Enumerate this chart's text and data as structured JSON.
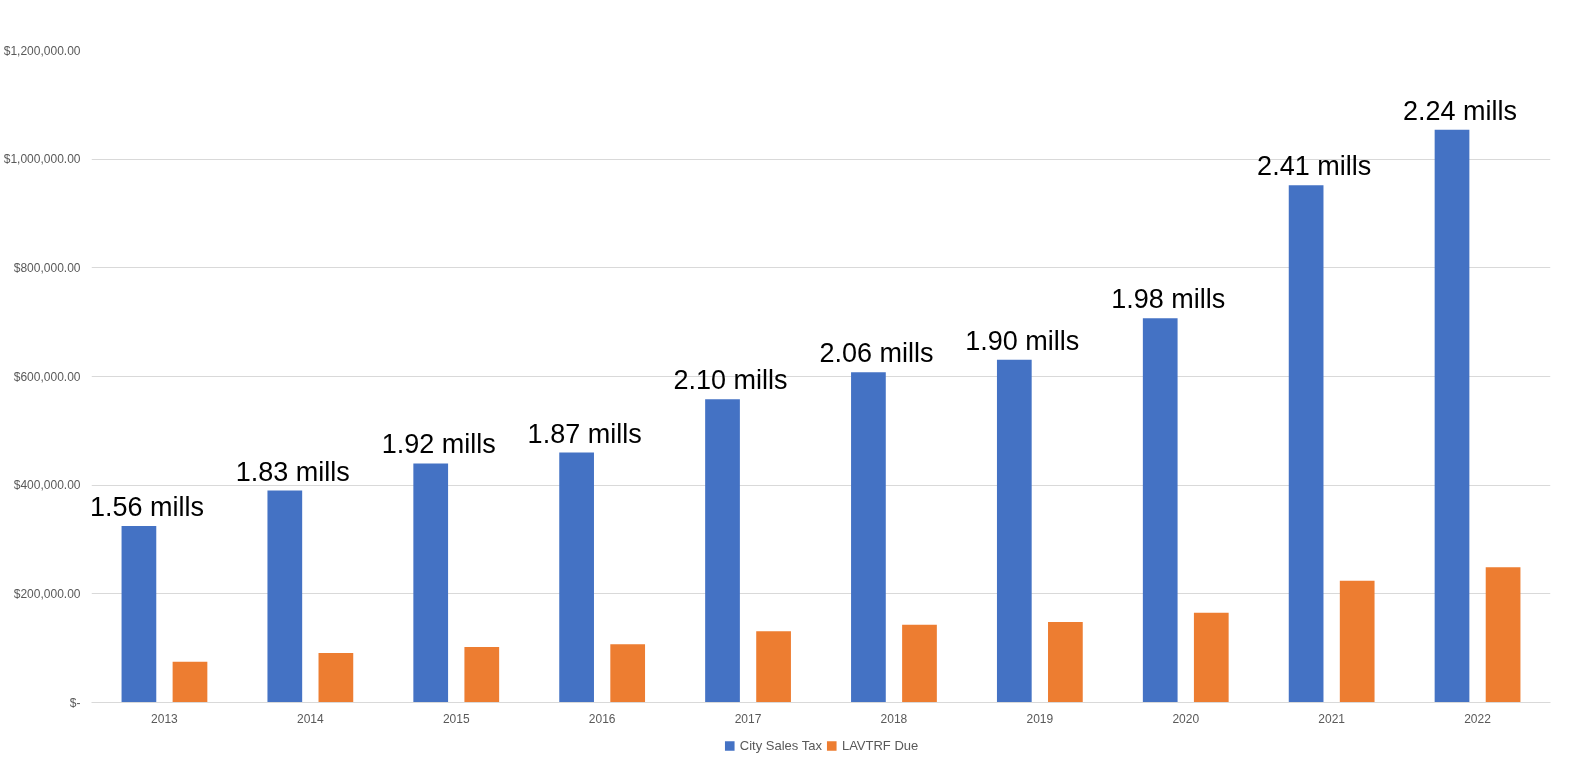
{
  "chart_data": {
    "type": "bar",
    "categories": [
      "2013",
      "2014",
      "2015",
      "2016",
      "2017",
      "2018",
      "2019",
      "2020",
      "2021",
      "2022"
    ],
    "series": [
      {
        "name": "City Sales Tax",
        "color": "#4472c4",
        "values": [
          325000,
          390000,
          440000,
          460000,
          558000,
          608000,
          631000,
          707000,
          952000,
          1054000
        ]
      },
      {
        "name": "LAVTRF Due",
        "color": "#ed7d31",
        "values": [
          75000,
          91000,
          102000,
          107000,
          131000,
          143000,
          148000,
          165000,
          224000,
          249000
        ]
      }
    ],
    "ylim": [
      0,
      1200000
    ],
    "yticks": [
      {
        "value": 0,
        "label": "$-"
      },
      {
        "value": 200000,
        "label": "$200,000.00"
      },
      {
        "value": 400000,
        "label": "$400,000.00"
      },
      {
        "value": 600000,
        "label": "$600,000.00"
      },
      {
        "value": 800000,
        "label": "$800,000.00"
      },
      {
        "value": 1000000,
        "label": "$1,000,000.00"
      },
      {
        "value": 1200000,
        "label": "$1,200,000.00"
      }
    ],
    "annotations": [
      "1.56 mills",
      "1.83 mills",
      "1.92 mills",
      "1.87 mills",
      "2.10 mills",
      "2.06 mills",
      "1.90 mills",
      "1.98 mills",
      "2.41 mills",
      "2.24 mills"
    ],
    "grid": "y",
    "legend": "bottom"
  }
}
